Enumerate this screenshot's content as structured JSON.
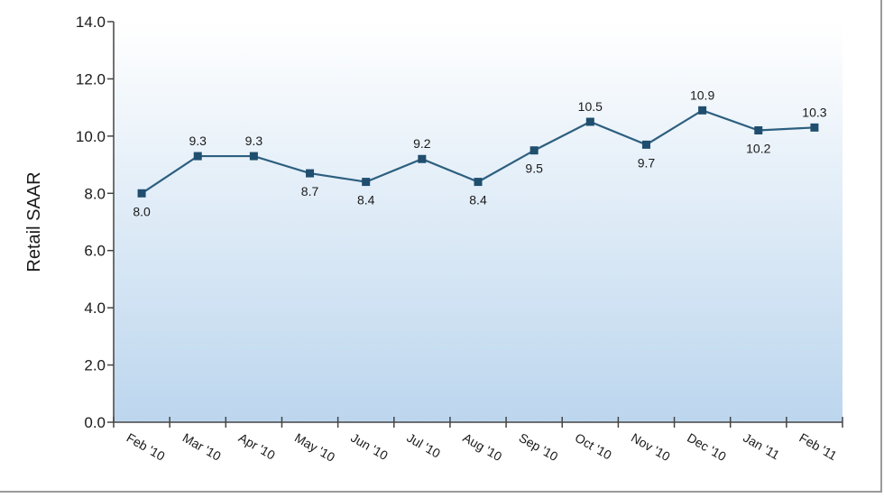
{
  "chart_data": {
    "type": "line",
    "title": "",
    "xlabel": "",
    "ylabel": "Retail SAAR",
    "categories": [
      "Feb '10",
      "Mar '10",
      "Apr '10",
      "May '10",
      "Jun '10",
      "Jul '10",
      "Aug '10",
      "Sep '10",
      "Oct '10",
      "Nov '10",
      "Dec '10",
      "Jan '11",
      "Feb '11"
    ],
    "series": [
      {
        "values": [
          8.0,
          9.3,
          9.3,
          8.7,
          8.4,
          9.2,
          8.4,
          9.5,
          10.5,
          9.7,
          10.9,
          10.2,
          10.3
        ]
      }
    ],
    "data_labels": [
      "8.0",
      "9.3",
      "9.3",
      "8.7",
      "8.4",
      "9.2",
      "8.4",
      "9.5",
      "10.5",
      "9.7",
      "10.9",
      "10.2",
      "10.3"
    ],
    "label_position": [
      "below",
      "above",
      "above",
      "below",
      "below",
      "above",
      "below",
      "below",
      "above",
      "below",
      "above",
      "below",
      "above"
    ],
    "ylim": [
      0,
      14
    ],
    "y_ticks": [
      "0.0",
      "2.0",
      "4.0",
      "6.0",
      "8.0",
      "10.0",
      "12.0",
      "14.0"
    ],
    "grid": false,
    "legend": "none",
    "colors": {
      "line": "#2d5f7f",
      "marker": "#1f4e6e",
      "axis": "#444444",
      "background_top": "#ffffff",
      "background_bottom": "#bcd6ee"
    }
  }
}
